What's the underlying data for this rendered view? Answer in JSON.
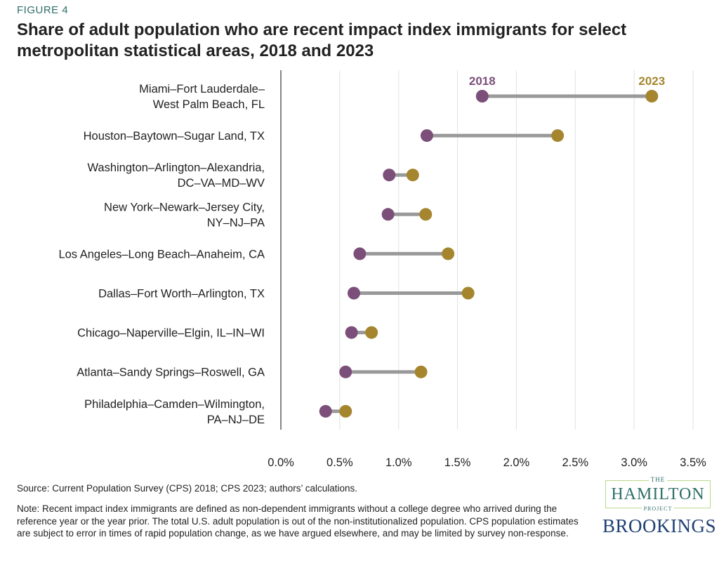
{
  "figure_label": "FIGURE 4",
  "title": "Share of adult population who are recent impact index immigrants for select metropolitan statistical areas, 2018 and 2023",
  "chart_data": {
    "type": "dumbbell",
    "title": "Share of adult population who are recent impact index immigrants for select metropolitan statistical areas, 2018 and 2023",
    "categories": [
      [
        "Miami–Fort Lauderdale–",
        "West Palm Beach, FL"
      ],
      [
        "Houston–Baytown–Sugar Land, TX"
      ],
      [
        "Washington–Arlington–Alexandria,",
        "DC–VA–MD–WV"
      ],
      [
        "New York–Newark–Jersey City,",
        "NY–NJ–PA"
      ],
      [
        "Los Angeles–Long Beach–Anaheim, CA"
      ],
      [
        "Dallas–Fort Worth–Arlington, TX"
      ],
      [
        "Chicago–Naperville–Elgin, IL–IN–WI"
      ],
      [
        "Atlanta–Sandy Springs–Roswell, GA"
      ],
      [
        "Philadelphia–Camden–Wilmington,",
        "PA–NJ–DE"
      ]
    ],
    "series": [
      {
        "name": "2018",
        "color": "#7b4f7a",
        "values": [
          1.71,
          1.24,
          0.92,
          0.91,
          0.67,
          0.62,
          0.6,
          0.55,
          0.38
        ]
      },
      {
        "name": "2023",
        "color": "#a5862f",
        "values": [
          3.15,
          2.35,
          1.12,
          1.23,
          1.42,
          1.59,
          0.77,
          1.19,
          0.55
        ]
      }
    ],
    "connector_color": "#999999",
    "xlim": [
      0,
      3.5
    ],
    "xticks": [
      "0.0%",
      "0.5%",
      "1.0%",
      "1.5%",
      "2.0%",
      "2.5%",
      "3.0%",
      "3.5%"
    ],
    "grid": true,
    "legend": "direct labels above first row"
  },
  "source": "Source: Current Population Survey (CPS) 2018; CPS 2023; authors’ calculations.",
  "note": "Note: Recent impact index immigrants are defined as non-dependent immigrants without a college degree who arrived during the reference year or the year prior. The total U.S. adult population is out of the non-institutionalized population. CPS population estimates are subject to error in times of rapid population change, as we have argued elsewhere, and may be limited by survey non-response.",
  "logos": {
    "hamilton_the": "THE",
    "hamilton": "HAMILTON",
    "hamilton_project": "PROJECT",
    "brookings": "BROOKINGS"
  }
}
